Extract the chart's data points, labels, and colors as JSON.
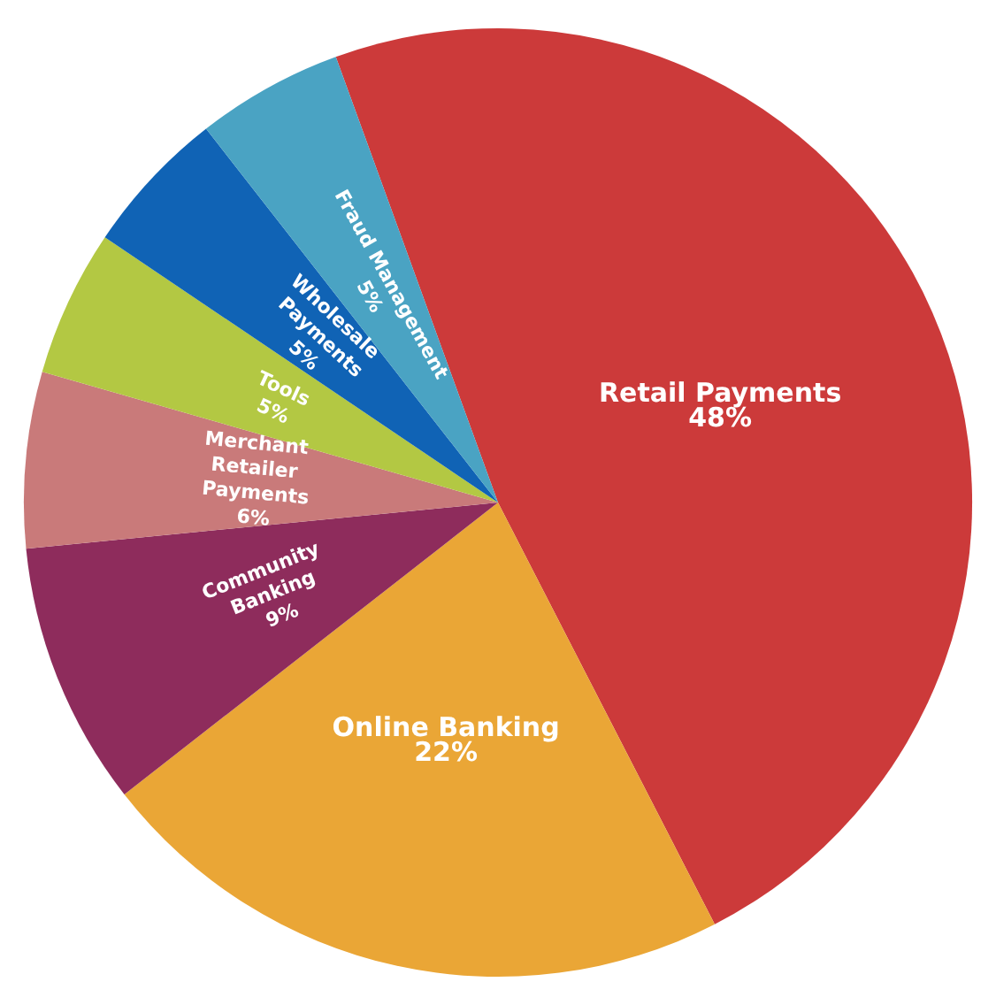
{
  "chart_data": {
    "type": "pie",
    "categories": [
      "Retail Payments",
      "Online Banking",
      "Community Banking",
      "Merchant Retailer Payments",
      "Tools",
      "Wholesale Payments",
      "Fraud Management"
    ],
    "values": [
      48,
      22,
      9,
      6,
      5,
      5,
      5
    ],
    "value_labels": [
      "48%",
      "22%",
      "9%",
      "6%",
      "5%",
      "5%",
      "5%"
    ],
    "colors": [
      "#cc3a3a",
      "#eaa636",
      "#8e2c5c",
      "#c97a7a",
      "#b3c843",
      "#1063b5",
      "#4aa3c3"
    ],
    "legend": false
  }
}
